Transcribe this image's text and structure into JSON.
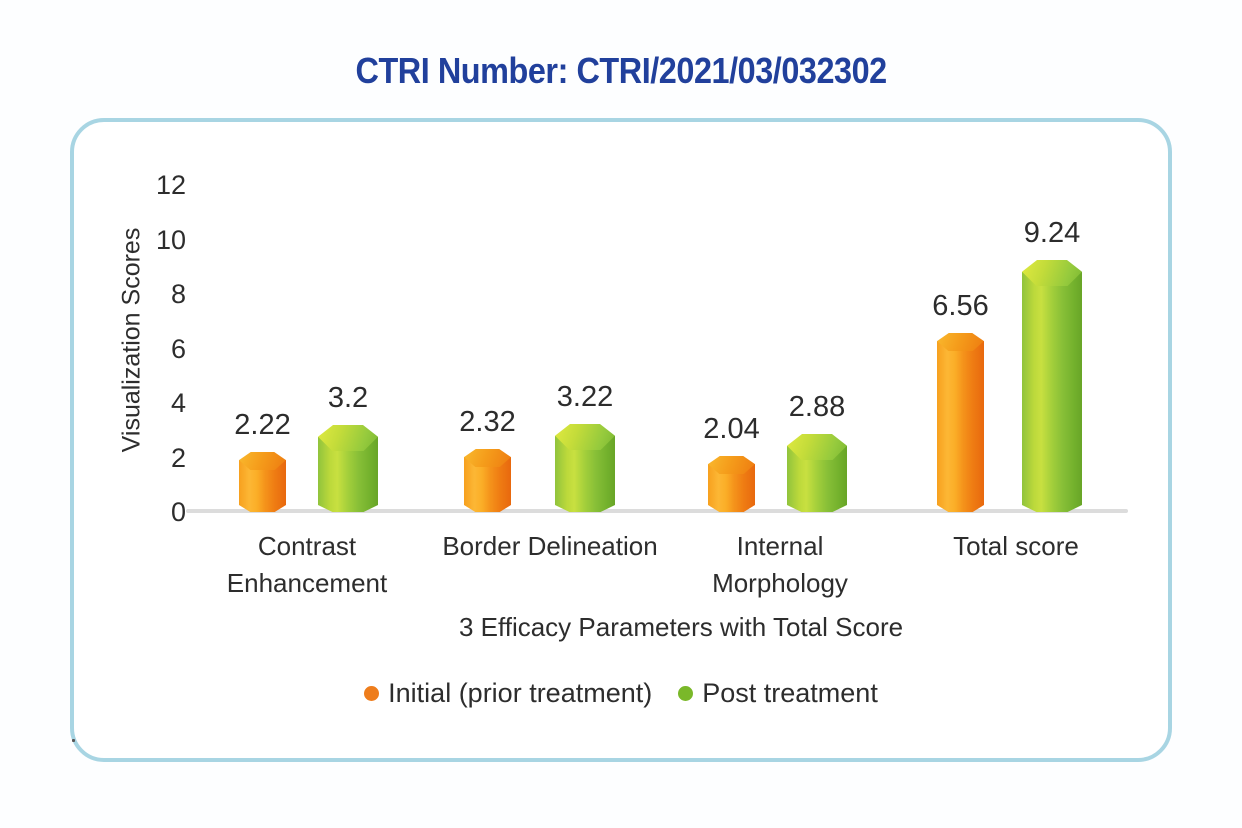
{
  "title": "CTRI Number: CTRI/2021/03/032302",
  "colors": {
    "title_blue": "#21409c",
    "panel_border": "#a8d5e3",
    "baseline_gray": "#dcdcdc",
    "text_dark": "#2d2d2d",
    "orange": "#ee7d1c",
    "green": "#7ab829"
  },
  "chart_data": {
    "type": "bar",
    "style": "3d-hexagonal-columns",
    "title": "CTRI Number: CTRI/2021/03/032302",
    "xlabel": "3 Efficacy Parameters with Total Score",
    "ylabel": "Visualization Scores",
    "yticks": [
      0,
      2,
      4,
      6,
      8,
      10,
      12
    ],
    "ylim": [
      0,
      12
    ],
    "grid": false,
    "legend_position": "bottom",
    "categories": [
      {
        "label": "Contrast Enhancement",
        "lines": [
          "Contrast",
          "Enhancement"
        ]
      },
      {
        "label": "Border Delineation",
        "lines": [
          "Border Delineation"
        ]
      },
      {
        "label": "Internal Morphology",
        "lines": [
          "Internal",
          "Morphology"
        ]
      },
      {
        "label": "Total score",
        "lines": [
          "Total score"
        ]
      }
    ],
    "series": [
      {
        "name": "Initial (prior treatment)",
        "color": "#ee7d1c",
        "values": [
          2.22,
          2.32,
          2.04,
          6.56
        ]
      },
      {
        "name": "Post treatment",
        "color": "#7ab829",
        "values": [
          3.2,
          3.22,
          2.88,
          9.24
        ]
      }
    ]
  },
  "legend": {
    "items": [
      {
        "label": "Initial (prior treatment)",
        "color": "#ee7d1c"
      },
      {
        "label": "Post treatment",
        "color": "#7ab829"
      }
    ]
  }
}
